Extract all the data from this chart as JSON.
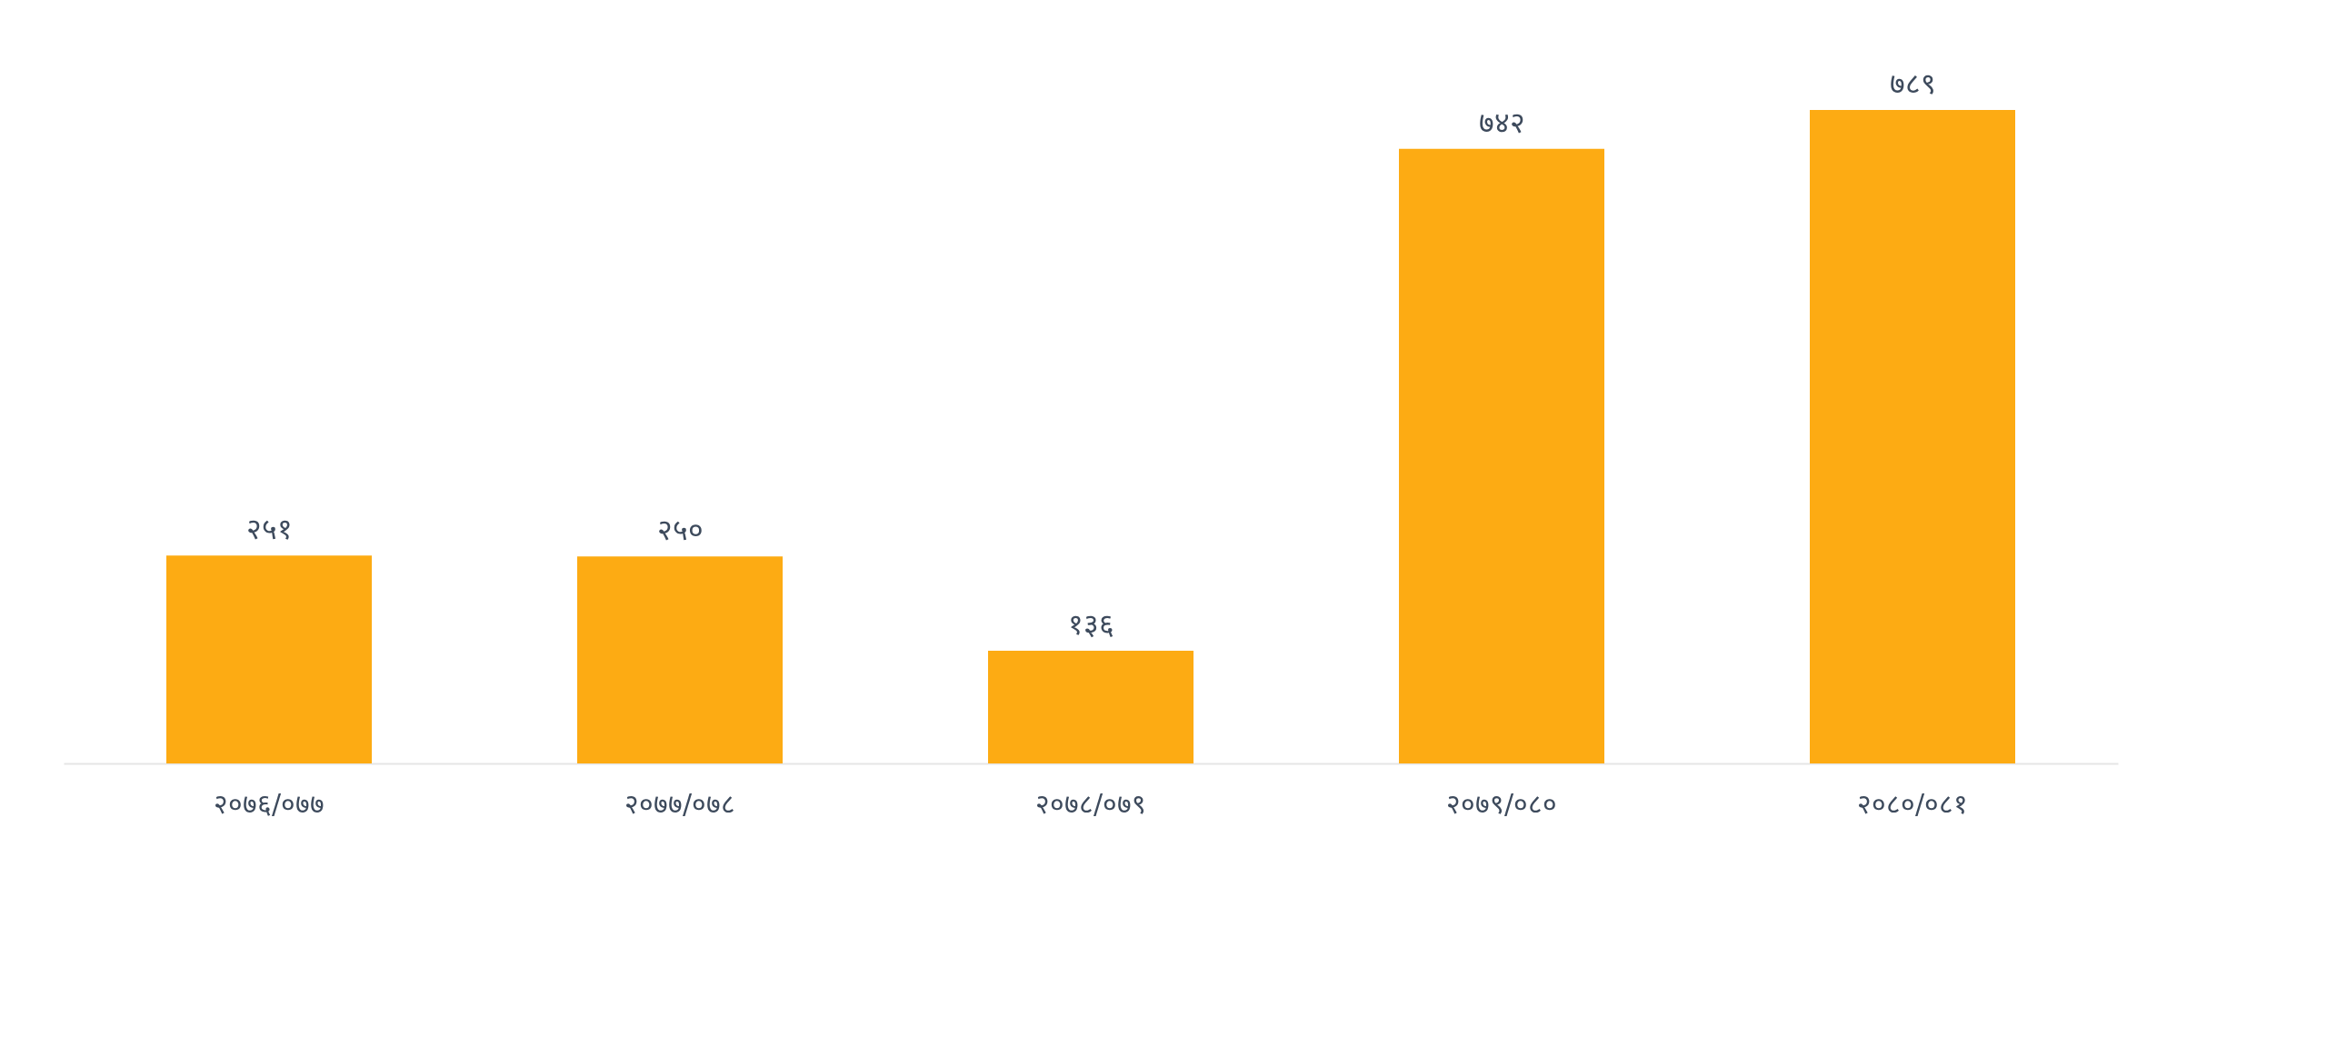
{
  "chart_data": {
    "type": "bar",
    "categories": [
      "२०७६/०७७",
      "२०७७/०७८",
      "२०७८/०७९",
      "२०७९/०८०",
      "२०८०/०८१"
    ],
    "values": [
      251,
      250,
      136,
      742,
      789
    ],
    "value_labels": [
      "२५१",
      "२५०",
      "१३६",
      "७४२",
      "७८९"
    ],
    "color": "#fdab13",
    "tick_labels": "x",
    "grid": false
  }
}
